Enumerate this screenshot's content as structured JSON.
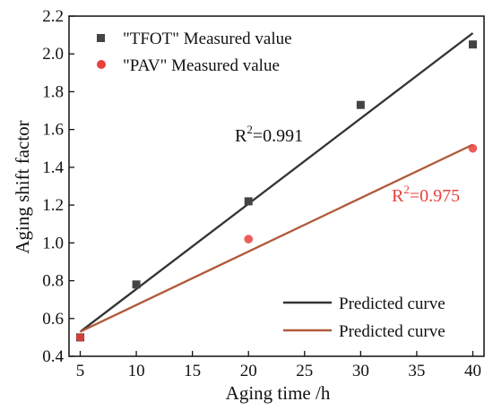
{
  "chart_data": {
    "type": "scatter",
    "xlabel": "Aging time /h",
    "ylabel": "Aging shift factor",
    "xlim": [
      4,
      41
    ],
    "ylim": [
      0.4,
      2.2
    ],
    "xticks": [
      "5",
      "10",
      "15",
      "20",
      "25",
      "30",
      "35",
      "40"
    ],
    "yticks": [
      "0.4",
      "0.6",
      "0.8",
      "1.0",
      "1.2",
      "1.4",
      "1.6",
      "1.8",
      "2.0",
      "2.2"
    ],
    "grid": false,
    "legend_position": "top-left",
    "series": [
      {
        "name": "\"TFOT\" Measured value",
        "marker": "square",
        "color": "#444444",
        "x": [
          5,
          10,
          20,
          30,
          40
        ],
        "y": [
          0.5,
          0.78,
          1.22,
          1.73,
          2.05
        ]
      },
      {
        "name": "\"PAV\" Measured value",
        "marker": "circle",
        "color": "#e8413c",
        "x": [
          5,
          20,
          40
        ],
        "y": [
          0.5,
          1.02,
          1.5
        ]
      }
    ],
    "fit_lines": [
      {
        "name": "Predicted curve",
        "color": "#333333",
        "x": [
          5,
          40
        ],
        "y": [
          0.53,
          2.11
        ],
        "r2_label": "R",
        "r2_sup": "2",
        "r2_value": "=0.991",
        "r2_color": "#111111"
      },
      {
        "name": "Predicted curve",
        "color": "#b05a3a",
        "x": [
          5,
          40
        ],
        "y": [
          0.53,
          1.52
        ],
        "r2_label": "R",
        "r2_sup": "2",
        "r2_value": "=0.975",
        "r2_color": "#e8413c"
      }
    ]
  }
}
